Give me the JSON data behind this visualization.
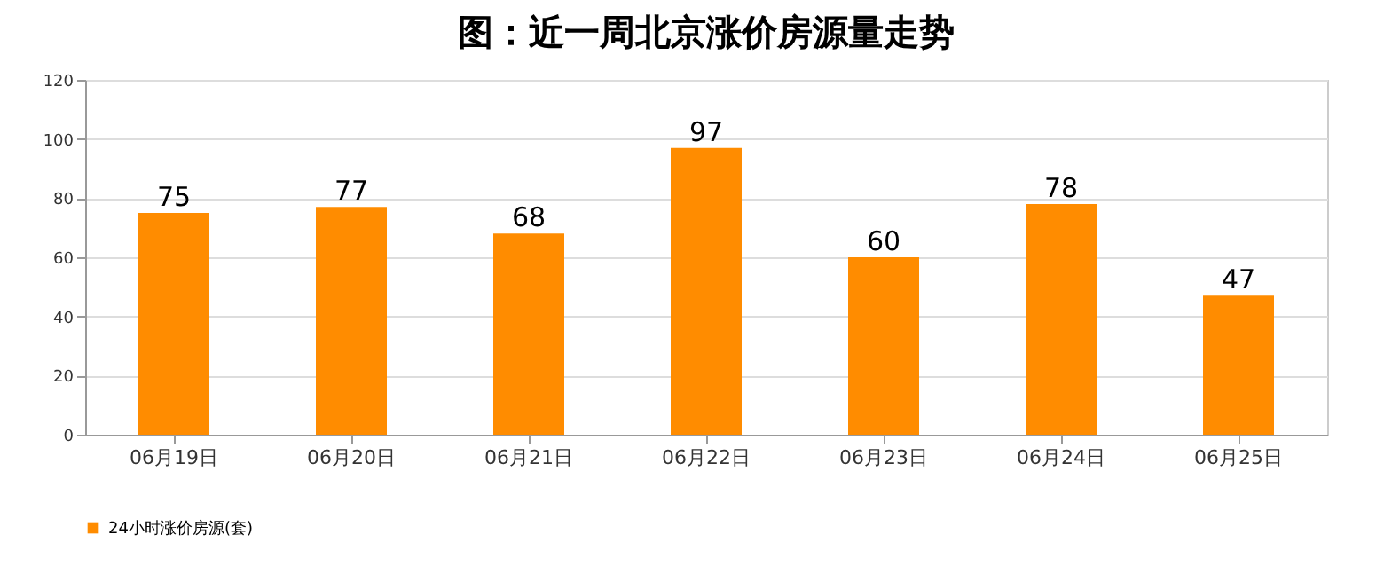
{
  "chart_data": {
    "type": "bar",
    "title": "图：近一周北京涨价房源量走势",
    "categories": [
      "06月19日",
      "06月20日",
      "06月21日",
      "06月22日",
      "06月23日",
      "06月24日",
      "06月25日"
    ],
    "series": [
      {
        "name": "24小时涨价房源(套)",
        "color": "#ff8c00",
        "values": [
          75,
          77,
          68,
          97,
          60,
          78,
          47
        ]
      }
    ],
    "ylim": [
      0,
      120
    ],
    "yticks": [
      0,
      20,
      40,
      60,
      80,
      100,
      120
    ],
    "grid": "y",
    "legend": "bottom",
    "data_labels": true
  }
}
